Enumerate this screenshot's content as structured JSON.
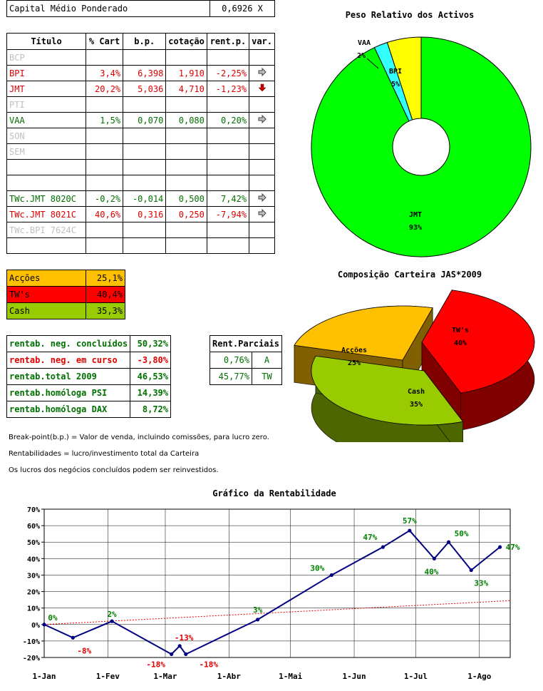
{
  "capital": {
    "label": "Capital Médio Ponderado",
    "value": "0,6926 X"
  },
  "main_table": {
    "headers": [
      "Título",
      "% Cart",
      "b.p.",
      "cotação",
      "rent.p.",
      "var."
    ],
    "rows": [
      {
        "titulo": "BCP",
        "cart": "",
        "bp": "",
        "cot": "",
        "rent": "",
        "var": "",
        "color": "grey"
      },
      {
        "titulo": "BPI",
        "cart": "3,4%",
        "bp": "6,398",
        "cot": "1,910",
        "rent": "-2,25%",
        "var": "right-arrow",
        "color": "red"
      },
      {
        "titulo": "JMT",
        "cart": "20,2%",
        "bp": "5,036",
        "cot": "4,710",
        "rent": "-1,23%",
        "var": "down-arrow",
        "color": "red"
      },
      {
        "titulo": "PTI",
        "cart": "",
        "bp": "",
        "cot": "",
        "rent": "",
        "var": "",
        "color": "grey"
      },
      {
        "titulo": "VAA",
        "cart": "1,5%",
        "bp": "0,070",
        "cot": "0,080",
        "rent": "0,20%",
        "var": "right-arrow",
        "color": "green"
      },
      {
        "titulo": "SON",
        "cart": "",
        "bp": "",
        "cot": "",
        "rent": "",
        "var": "",
        "color": "grey"
      },
      {
        "titulo": "SEM",
        "cart": "",
        "bp": "",
        "cot": "",
        "rent": "",
        "var": "",
        "color": "grey"
      },
      {
        "titulo": "",
        "cart": "",
        "bp": "",
        "cot": "",
        "rent": "",
        "var": "",
        "color": "grey"
      },
      {
        "titulo": "",
        "cart": "",
        "bp": "",
        "cot": "",
        "rent": "",
        "var": "",
        "color": "grey"
      },
      {
        "titulo": "TWc.JMT 8020C",
        "cart": "-0,2%",
        "bp": "-0,014",
        "cot": "0,500",
        "rent": "7,42%",
        "var": "right-arrow",
        "color": "green"
      },
      {
        "titulo": "TWc.JMT 8021C",
        "cart": "40,6%",
        "bp": "0,316",
        "cot": "0,250",
        "rent": "-7,94%",
        "var": "right-arrow",
        "color": "red"
      },
      {
        "titulo": "TWc.BPI 7624C",
        "cart": "",
        "bp": "",
        "cot": "",
        "rent": "",
        "var": "",
        "color": "grey"
      },
      {
        "titulo": "",
        "cart": "",
        "bp": "",
        "cot": "",
        "rent": "",
        "var": "",
        "color": "grey"
      }
    ]
  },
  "composition": [
    {
      "label": "Acções",
      "value": "25,1%",
      "bg": "#ffc000",
      "fg": "#000000"
    },
    {
      "label": "TW's",
      "value": "40,4%",
      "bg": "#ff0000",
      "fg": "#000000"
    },
    {
      "label": "Cash",
      "value": "35,3%",
      "bg": "#99cc00",
      "fg": "#000000"
    }
  ],
  "rentab": [
    {
      "label": "rentab. neg. concluídos",
      "value": "50,32%",
      "color": "green"
    },
    {
      "label": "rentab. neg. em curso",
      "value": "-3,80%",
      "color": "red"
    },
    {
      "label": "rentab.total 2009",
      "value": "46,53%",
      "color": "green"
    },
    {
      "label": "rentab.homóloga PSI",
      "value": "14,39%",
      "color": "green"
    },
    {
      "label": "rentab.homóloga DAX",
      "value": "8,72%",
      "color": "green"
    }
  ],
  "parciais": {
    "header": "Rent.Parciais",
    "rows": [
      {
        "value": "0,76%",
        "code": "A"
      },
      {
        "value": "45,77%",
        "code": "TW"
      }
    ]
  },
  "notes": [
    "Break-point(b.p.) = Valor de venda, incluindo comissões, para lucro zero.",
    "Rentabilidades = lucro/investimento total da Carteira",
    "Os lucros dos negócios concluídos podem ser reinvestidos."
  ],
  "chart_data": [
    {
      "type": "pie",
      "title": "Peso Relativo dos Activos",
      "slices": [
        {
          "label": "JMT",
          "pct": "93%",
          "value": 93,
          "color": "#00ff00"
        },
        {
          "label": "VAA",
          "pct": "2%",
          "value": 2,
          "color": "#33ffff"
        },
        {
          "label": "BPI",
          "pct": "5%",
          "value": 5,
          "color": "#ffff00"
        }
      ]
    },
    {
      "type": "pie",
      "title": "Composição Carteira JAS*2009",
      "slices": [
        {
          "label": "TW's",
          "pct": "40%",
          "value": 40.4,
          "color": "#ff0000"
        },
        {
          "label": "Cash",
          "pct": "35%",
          "value": 35.3,
          "color": "#99cc00"
        },
        {
          "label": "Acções",
          "pct": "25%",
          "value": 25.1,
          "color": "#ffc000"
        }
      ]
    },
    {
      "type": "line",
      "title": "Gráfico da Rentabilidade",
      "x_ticks": [
        "1-Jan",
        "1-Fev",
        "1-Mar",
        "1-Abr",
        "1-Mai",
        "1-Jun",
        "1-Jul",
        "1-Ago"
      ],
      "x_tick_days": [
        0,
        31,
        59,
        90,
        120,
        151,
        181,
        212
      ],
      "y_ticks": [
        "-20%",
        "-10%",
        "0%",
        "10%",
        "20%",
        "30%",
        "40%",
        "50%",
        "60%",
        "70%"
      ],
      "ylim": [
        -20,
        70
      ],
      "series": [
        {
          "points": [
            {
              "day": 0,
              "y": 0,
              "label": "0%",
              "lc": "#008000"
            },
            {
              "day": 14,
              "y": -8,
              "label": "-8%",
              "lc": "#e00000"
            },
            {
              "day": 33,
              "y": 2,
              "label": "2%",
              "lc": "#008000"
            },
            {
              "day": 62,
              "y": -18,
              "label": "-18%",
              "lc": "#e00000"
            },
            {
              "day": 66,
              "y": -13,
              "label": "-13%",
              "lc": "#e00000"
            },
            {
              "day": 69,
              "y": -18,
              "label": "-18%",
              "lc": "#e00000"
            },
            {
              "day": 104,
              "y": 3,
              "label": "3%",
              "lc": "#008000"
            },
            {
              "day": 140,
              "y": 30,
              "label": "30%",
              "lc": "#008000"
            },
            {
              "day": 165,
              "y": 47,
              "label": "47%",
              "lc": "#008000"
            },
            {
              "day": 178,
              "y": 57,
              "label": "57%",
              "lc": "#008000"
            },
            {
              "day": 190,
              "y": 40,
              "label": "40%",
              "lc": "#008000"
            },
            {
              "day": 197,
              "y": 50,
              "label": "50%",
              "lc": "#008000"
            },
            {
              "day": 208,
              "y": 33,
              "label": "33%",
              "lc": "#008000"
            },
            {
              "day": 222,
              "y": 47,
              "label": "47%",
              "lc": "#008000"
            }
          ]
        },
        {
          "trend": true,
          "points": [
            {
              "day": 0,
              "y": 0
            },
            {
              "day": 227,
              "y": 14.5
            }
          ]
        }
      ]
    }
  ]
}
